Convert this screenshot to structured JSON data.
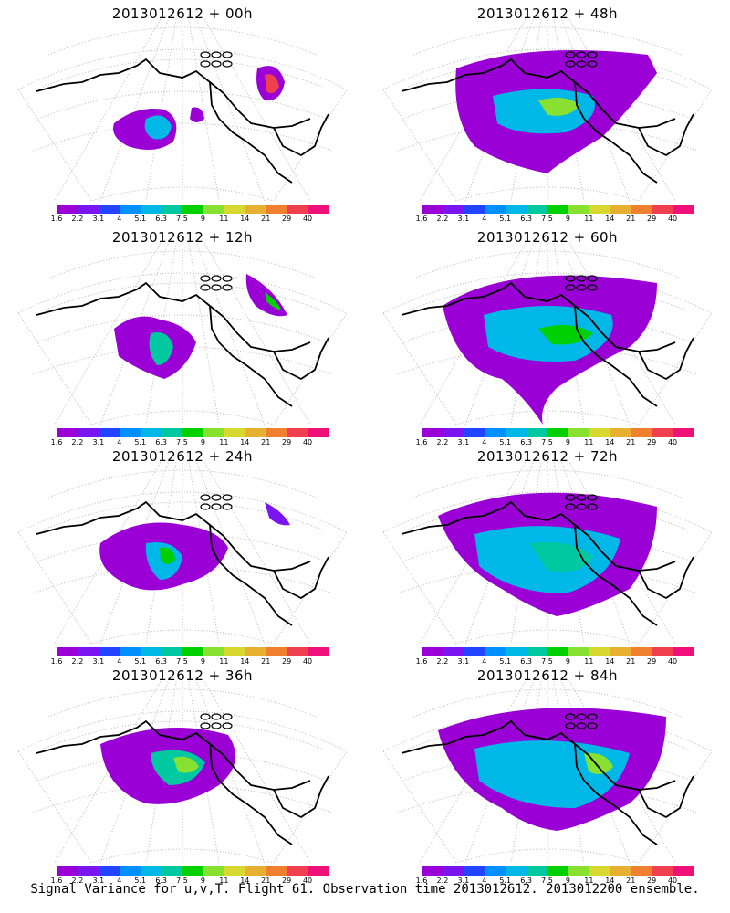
{
  "panels": [
    {
      "title": "2013012612 + 00h"
    },
    {
      "title": "2013012612 + 48h"
    },
    {
      "title": "2013012612 + 12h"
    },
    {
      "title": "2013012612 + 60h"
    },
    {
      "title": "2013012612 + 24h"
    },
    {
      "title": "2013012612 + 72h"
    },
    {
      "title": "2013012612 + 36h"
    },
    {
      "title": "2013012612 + 84h"
    }
  ],
  "colorbar": {
    "labels": [
      "1.6",
      "2.2",
      "3.1",
      "4",
      "5.1",
      "6.3",
      "7.5",
      "9",
      "11",
      "14",
      "21",
      "29",
      "40"
    ],
    "colors": [
      "#9a00d6",
      "#7a14f0",
      "#2244ff",
      "#0090ff",
      "#00b8e8",
      "#00c8a0",
      "#00d000",
      "#88e030",
      "#d8d830",
      "#e8b030",
      "#f08030",
      "#f04050",
      "#f0107a"
    ]
  },
  "footer": "Signal Variance for u,v,T. Flight 61. Observation time 2013012612. 2013012200 ensemble."
}
